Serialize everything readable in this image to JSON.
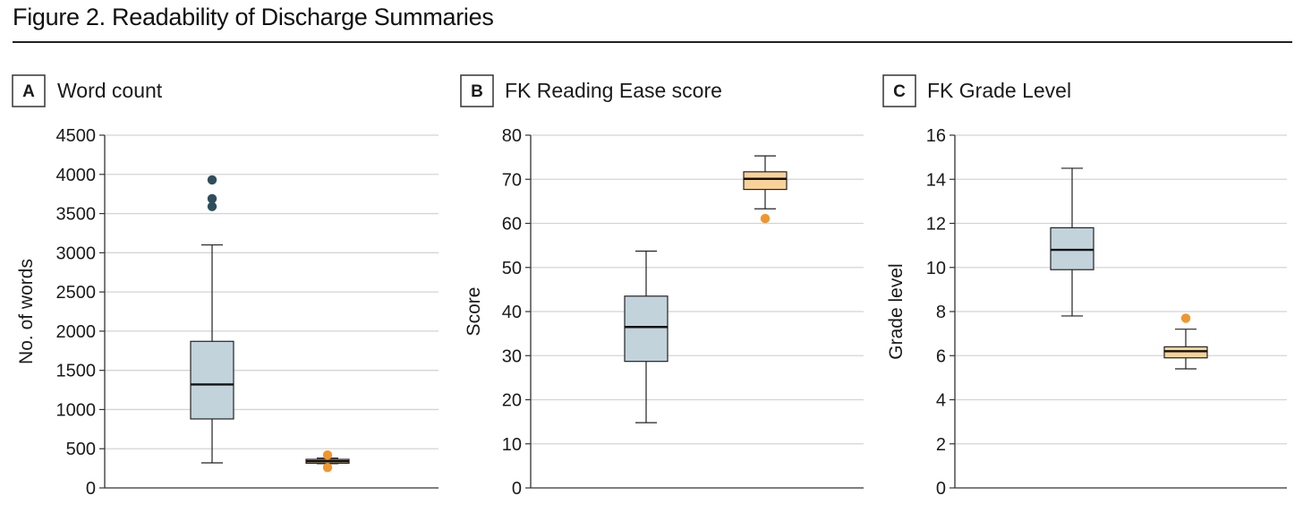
{
  "figure_title": "Figure 2. Readability of Discharge Summaries",
  "colors": {
    "box_a": "#c2d3dc",
    "box_b": "#f9d29a",
    "outlier_a": "#2f4e5c",
    "outlier_b": "#f0962e",
    "grid": "#d4d4d4",
    "axis": "#333333"
  },
  "chart_data": [
    {
      "type": "box",
      "panel_letter": "A",
      "title": "Word count",
      "xlabel": "",
      "ylabel": "No. of words",
      "ylim": [
        0,
        4500
      ],
      "yticks": [
        0,
        500,
        1000,
        1500,
        2000,
        2500,
        3000,
        3500,
        4000,
        4500
      ],
      "grid": true,
      "boxes": [
        {
          "color": "#c2d3dc",
          "outlier_color": "#2f4e5c",
          "whisker_low": 320,
          "q1": 880,
          "median": 1320,
          "q3": 1870,
          "whisker_high": 3100,
          "outliers": [
            3590,
            3690,
            3930
          ]
        },
        {
          "color": "#f9d29a",
          "outlier_color": "#f0962e",
          "whisker_low": 310,
          "q1": 315,
          "median": 340,
          "q3": 365,
          "whisker_high": 380,
          "outliers": [
            260,
            420
          ]
        }
      ]
    },
    {
      "type": "box",
      "panel_letter": "B",
      "title": "FK Reading Ease score",
      "xlabel": "",
      "ylabel": "Score",
      "ylim": [
        0,
        80
      ],
      "yticks": [
        0,
        10,
        20,
        30,
        40,
        50,
        60,
        70,
        80
      ],
      "grid": true,
      "boxes": [
        {
          "color": "#c2d3dc",
          "outlier_color": "#2f4e5c",
          "whisker_low": 14.8,
          "q1": 28.7,
          "median": 36.5,
          "q3": 43.5,
          "whisker_high": 53.7,
          "outliers": []
        },
        {
          "color": "#f9d29a",
          "outlier_color": "#f0962e",
          "whisker_low": 63.3,
          "q1": 67.7,
          "median": 70.1,
          "q3": 71.7,
          "whisker_high": 75.3,
          "outliers": [
            61.1
          ]
        }
      ]
    },
    {
      "type": "box",
      "panel_letter": "C",
      "title": "FK Grade Level",
      "xlabel": "",
      "ylabel": "Grade level",
      "ylim": [
        0,
        16
      ],
      "yticks": [
        0,
        2,
        4,
        6,
        8,
        10,
        12,
        14,
        16
      ],
      "grid": true,
      "boxes": [
        {
          "color": "#c2d3dc",
          "outlier_color": "#2f4e5c",
          "whisker_low": 7.8,
          "q1": 9.9,
          "median": 10.8,
          "q3": 11.8,
          "whisker_high": 14.5,
          "outliers": []
        },
        {
          "color": "#f9d29a",
          "outlier_color": "#f0962e",
          "whisker_low": 5.4,
          "q1": 5.9,
          "median": 6.2,
          "q3": 6.4,
          "whisker_high": 7.2,
          "outliers": [
            7.7
          ]
        }
      ]
    }
  ]
}
